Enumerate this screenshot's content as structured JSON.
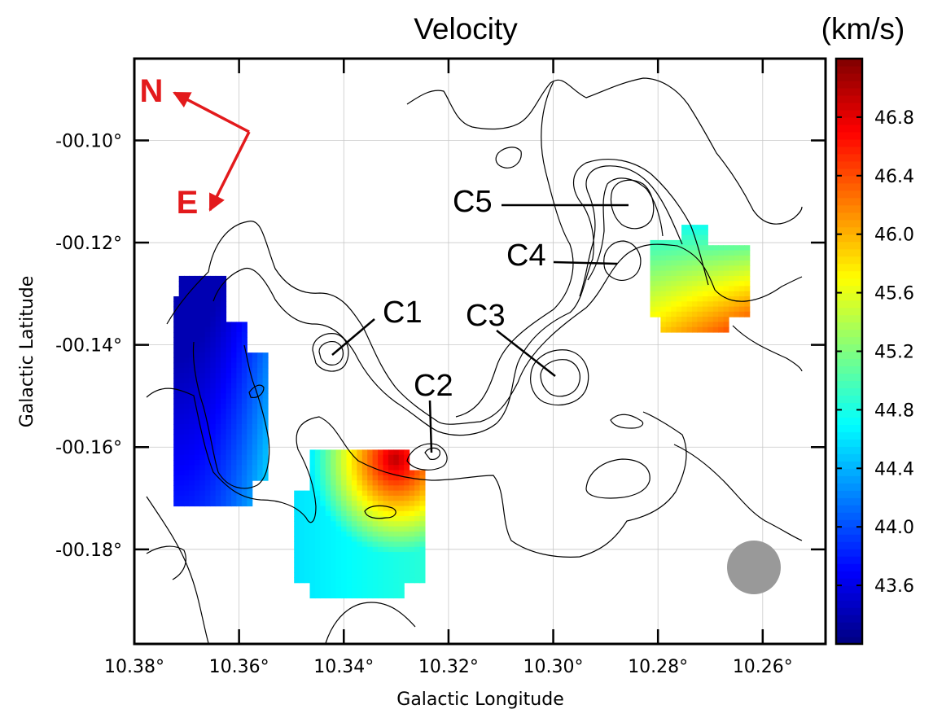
{
  "chart_data": {
    "type": "heatmap",
    "title": "Velocity",
    "colorbar_label": "(km/s)",
    "xlabel": "Galactic Longitude",
    "ylabel": "Galactic Latitude",
    "xlim": [
      10.38,
      10.248
    ],
    "ylim": [
      -0.1985,
      -0.084
    ],
    "x_ticks": [
      10.38,
      10.36,
      10.34,
      10.32,
      10.3,
      10.28,
      10.26
    ],
    "x_tick_labels": [
      "10.38°",
      "10.36°",
      "10.34°",
      "10.32°",
      "10.30°",
      "10.28°",
      "10.26°"
    ],
    "y_ticks": [
      -0.1,
      -0.12,
      -0.14,
      -0.16,
      -0.18
    ],
    "y_tick_labels": [
      "-00.10°",
      "-00.12°",
      "-00.14°",
      "-00.16°",
      "-00.18°"
    ],
    "colorbar": {
      "vmin": 43.2,
      "vmax": 47.2,
      "ticks": [
        43.6,
        44.0,
        44.4,
        44.8,
        45.2,
        45.6,
        46.0,
        46.4,
        46.8
      ],
      "tick_labels": [
        "43.6",
        "44.0",
        "44.4",
        "44.8",
        "45.2",
        "45.6",
        "46.0",
        "46.4",
        "46.8"
      ]
    },
    "grid": true,
    "regions": [
      {
        "name": "west-lobe",
        "l_range": [
          10.3725,
          10.355
        ],
        "b_range": [
          -0.1715,
          -0.1265
        ],
        "gradient": "low-mid",
        "v_range": [
          43.4,
          44.5
        ]
      },
      {
        "name": "south-lobe",
        "l_range": [
          10.3495,
          10.3245
        ],
        "b_range": [
          -0.1895,
          -0.1605
        ],
        "v_range": [
          44.6,
          46.9
        ]
      },
      {
        "name": "east-patch",
        "l_range": [
          10.2815,
          10.2625
        ],
        "b_range": [
          -0.1375,
          -0.1165
        ],
        "v_range": [
          44.4,
          46.3
        ]
      }
    ],
    "clumps": [
      {
        "label": "C1",
        "l": 10.3415,
        "b": -0.1415
      },
      {
        "label": "C2",
        "l": 10.3235,
        "b": -0.1605
      },
      {
        "label": "C3",
        "l": 10.2995,
        "b": -0.1455
      },
      {
        "label": "C4",
        "l": 10.2865,
        "b": -0.1245
      },
      {
        "label": "C5",
        "l": 10.2855,
        "b": -0.1132
      }
    ],
    "compass": {
      "north_label": "N",
      "east_label": "E"
    },
    "beam": {
      "l": 10.2615,
      "b": -0.1825,
      "color": "#999999"
    },
    "colors": {
      "compass": "#e31a1c",
      "contour": "#000000",
      "beam": "#999999"
    }
  }
}
